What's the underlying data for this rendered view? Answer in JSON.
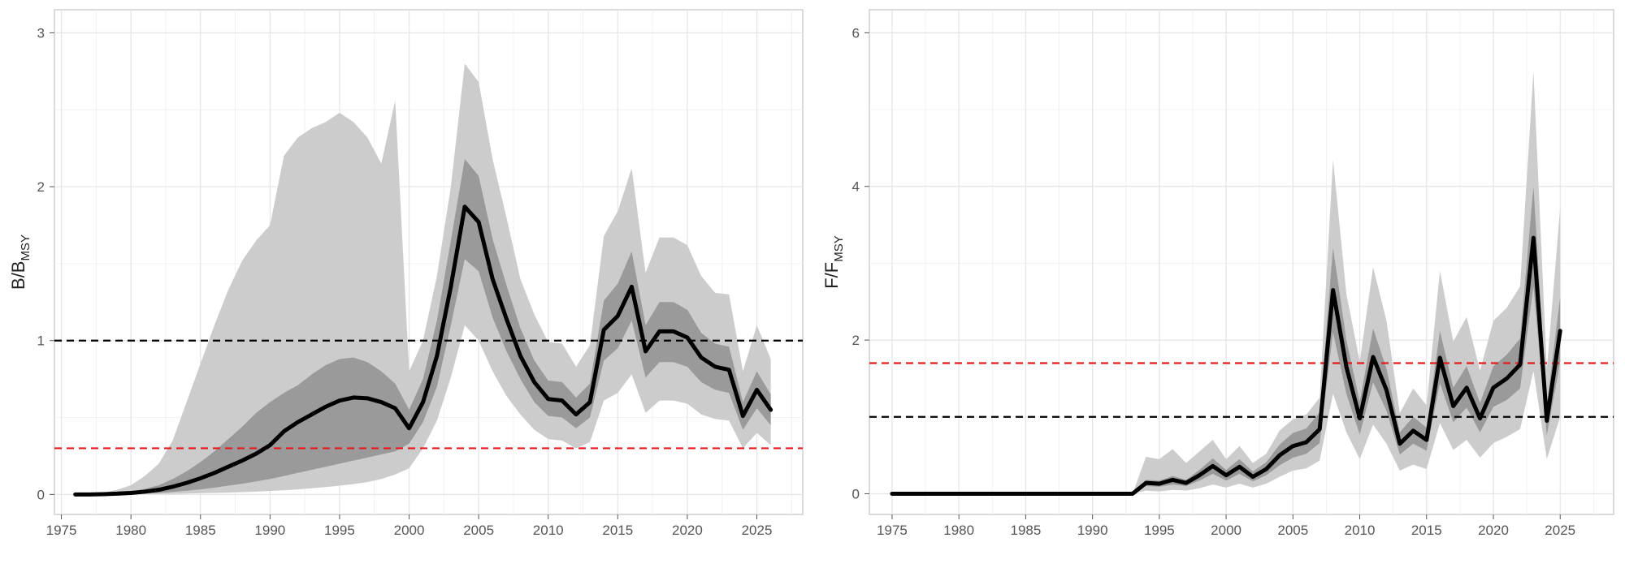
{
  "chart_data": [
    {
      "type": "area",
      "name": "biomass",
      "ylabel_main": "B/B",
      "ylabel_sub": "MSY",
      "xlim": [
        1974.5,
        2028.3
      ],
      "ylim": [
        -0.13,
        3.15
      ],
      "xticks": [
        1975,
        1980,
        1985,
        1990,
        1995,
        2000,
        2005,
        2010,
        2015,
        2020,
        2025
      ],
      "yticks": [
        0,
        1,
        2,
        3
      ],
      "reference_lines": [
        {
          "value": 1.0,
          "color": "#000000"
        },
        {
          "value": 0.3,
          "color": "#e41a1c"
        }
      ],
      "years": [
        1976,
        1977,
        1978,
        1979,
        1980,
        1981,
        1982,
        1983,
        1984,
        1985,
        1986,
        1987,
        1988,
        1989,
        1990,
        1991,
        1992,
        1993,
        1994,
        1995,
        1996,
        1997,
        1998,
        1999,
        2000,
        2001,
        2002,
        2003,
        2004,
        2005,
        2006,
        2007,
        2008,
        2009,
        2010,
        2011,
        2012,
        2013,
        2014,
        2015,
        2016,
        2017,
        2018,
        2019,
        2020,
        2021,
        2022,
        2023,
        2024,
        2025,
        2026
      ],
      "median": [
        0,
        0,
        0.002,
        0.005,
        0.01,
        0.018,
        0.03,
        0.05,
        0.075,
        0.105,
        0.14,
        0.18,
        0.22,
        0.265,
        0.32,
        0.41,
        0.47,
        0.52,
        0.57,
        0.61,
        0.63,
        0.625,
        0.6,
        0.56,
        0.43,
        0.6,
        0.9,
        1.35,
        1.87,
        1.77,
        1.4,
        1.14,
        0.9,
        0.73,
        0.62,
        0.61,
        0.52,
        0.6,
        1.07,
        1.16,
        1.35,
        0.93,
        1.06,
        1.06,
        1.02,
        0.89,
        0.83,
        0.81,
        0.51,
        0.68,
        0.55
      ],
      "inner_low": [
        0,
        0,
        0,
        0.001,
        0.003,
        0.006,
        0.01,
        0.016,
        0.024,
        0.033,
        0.044,
        0.057,
        0.07,
        0.085,
        0.1,
        0.12,
        0.14,
        0.16,
        0.18,
        0.2,
        0.22,
        0.24,
        0.26,
        0.28,
        0.33,
        0.47,
        0.7,
        1.1,
        1.53,
        1.45,
        1.15,
        0.93,
        0.75,
        0.6,
        0.51,
        0.5,
        0.43,
        0.5,
        0.87,
        0.95,
        1.13,
        0.76,
        0.86,
        0.86,
        0.83,
        0.73,
        0.68,
        0.66,
        0.42,
        0.56,
        0.45
      ],
      "inner_high": [
        0,
        0,
        0.004,
        0.01,
        0.02,
        0.036,
        0.06,
        0.1,
        0.15,
        0.21,
        0.28,
        0.36,
        0.44,
        0.53,
        0.6,
        0.66,
        0.71,
        0.78,
        0.84,
        0.88,
        0.89,
        0.86,
        0.8,
        0.72,
        0.55,
        0.75,
        1.13,
        1.65,
        2.18,
        2.07,
        1.66,
        1.36,
        1.08,
        0.87,
        0.74,
        0.73,
        0.63,
        0.72,
        1.26,
        1.37,
        1.58,
        1.1,
        1.25,
        1.25,
        1.2,
        1.05,
        0.98,
        0.96,
        0.6,
        0.8,
        0.65
      ],
      "outer_low": [
        0,
        0,
        0,
        0,
        0.001,
        0.002,
        0.003,
        0.004,
        0.006,
        0.008,
        0.01,
        0.012,
        0.015,
        0.018,
        0.022,
        0.027,
        0.033,
        0.04,
        0.048,
        0.057,
        0.067,
        0.08,
        0.1,
        0.13,
        0.17,
        0.3,
        0.48,
        0.76,
        1.1,
        1.0,
        0.8,
        0.64,
        0.52,
        0.42,
        0.36,
        0.35,
        0.3,
        0.34,
        0.61,
        0.66,
        0.78,
        0.53,
        0.61,
        0.61,
        0.59,
        0.52,
        0.49,
        0.48,
        0.3,
        0.4,
        0.32
      ],
      "outer_high": [
        0,
        0,
        0.01,
        0.03,
        0.06,
        0.12,
        0.2,
        0.35,
        0.6,
        0.85,
        1.1,
        1.33,
        1.52,
        1.65,
        1.75,
        2.2,
        2.32,
        2.38,
        2.42,
        2.48,
        2.42,
        2.32,
        2.15,
        2.56,
        0.8,
        1.0,
        1.42,
        2.0,
        2.8,
        2.68,
        2.18,
        1.8,
        1.4,
        1.17,
        0.99,
        0.98,
        0.83,
        0.97,
        1.68,
        1.84,
        2.12,
        1.44,
        1.67,
        1.67,
        1.62,
        1.42,
        1.31,
        1.3,
        0.8,
        1.1,
        0.88
      ]
    },
    {
      "type": "area",
      "name": "fishing",
      "ylabel_main": "F/F",
      "ylabel_sub": "MSY",
      "xlim": [
        1973.3,
        2029.0
      ],
      "ylim": [
        -0.27,
        6.3
      ],
      "xticks": [
        1975,
        1980,
        1985,
        1990,
        1995,
        2000,
        2005,
        2010,
        2015,
        2020,
        2025
      ],
      "yticks": [
        0,
        2,
        4,
        6
      ],
      "reference_lines": [
        {
          "value": 1.0,
          "color": "#000000"
        },
        {
          "value": 1.7,
          "color": "#e41a1c"
        }
      ],
      "years": [
        1975,
        1976,
        1977,
        1978,
        1979,
        1980,
        1981,
        1982,
        1983,
        1984,
        1985,
        1986,
        1987,
        1988,
        1989,
        1990,
        1991,
        1992,
        1993,
        1994,
        1995,
        1996,
        1997,
        1998,
        1999,
        2000,
        2001,
        2002,
        2003,
        2004,
        2005,
        2006,
        2007,
        2008,
        2009,
        2010,
        2011,
        2012,
        2013,
        2014,
        2015,
        2016,
        2017,
        2018,
        2019,
        2020,
        2021,
        2022,
        2023,
        2024,
        2025
      ],
      "median": [
        0,
        0,
        0,
        0,
        0,
        0,
        0,
        0,
        0,
        0,
        0,
        0,
        0,
        0,
        0,
        0,
        0,
        0,
        0,
        0.14,
        0.13,
        0.18,
        0.14,
        0.24,
        0.36,
        0.24,
        0.35,
        0.22,
        0.32,
        0.5,
        0.62,
        0.67,
        0.84,
        2.65,
        1.65,
        0.98,
        1.78,
        1.35,
        0.65,
        0.82,
        0.7,
        1.77,
        1.14,
        1.38,
        0.98,
        1.38,
        1.5,
        1.68,
        3.33,
        0.95,
        2.12
      ],
      "inner_low": [
        0,
        0,
        0,
        0,
        0,
        0,
        0,
        0,
        0,
        0,
        0,
        0,
        0,
        0,
        0,
        0,
        0,
        0,
        0,
        0.1,
        0.09,
        0.12,
        0.1,
        0.17,
        0.26,
        0.17,
        0.26,
        0.16,
        0.24,
        0.37,
        0.47,
        0.52,
        0.66,
        2.1,
        1.3,
        0.77,
        1.45,
        1.08,
        0.51,
        0.65,
        0.56,
        1.44,
        0.93,
        1.12,
        0.8,
        1.13,
        1.22,
        1.37,
        2.7,
        0.76,
        1.72
      ],
      "inner_high": [
        0,
        0,
        0,
        0,
        0,
        0,
        0,
        0,
        0,
        0,
        0,
        0,
        0,
        0,
        0,
        0,
        0,
        0,
        0,
        0.18,
        0.17,
        0.23,
        0.18,
        0.31,
        0.46,
        0.31,
        0.45,
        0.29,
        0.41,
        0.64,
        0.79,
        0.85,
        1.06,
        3.2,
        2.0,
        1.2,
        2.15,
        1.63,
        0.8,
        1.0,
        0.86,
        2.12,
        1.38,
        1.66,
        1.18,
        1.66,
        1.81,
        2.02,
        4.0,
        1.15,
        2.56
      ],
      "outer_low": [
        0,
        0,
        0,
        0,
        0,
        0,
        0,
        0,
        0,
        0,
        0,
        0,
        0,
        0,
        0,
        0,
        0,
        0,
        0,
        0.04,
        0.03,
        0.05,
        0.04,
        0.07,
        0.12,
        0.08,
        0.13,
        0.08,
        0.13,
        0.22,
        0.3,
        0.33,
        0.43,
        1.3,
        0.8,
        0.45,
        0.9,
        0.65,
        0.3,
        0.38,
        0.32,
        0.92,
        0.57,
        0.7,
        0.47,
        0.66,
        0.74,
        0.84,
        1.6,
        0.45,
        1.0
      ],
      "outer_high": [
        0,
        0,
        0,
        0,
        0,
        0,
        0,
        0,
        0,
        0,
        0,
        0,
        0,
        0,
        0,
        0,
        0,
        0,
        0,
        0.48,
        0.45,
        0.58,
        0.4,
        0.55,
        0.7,
        0.45,
        0.62,
        0.4,
        0.52,
        0.82,
        0.97,
        1.03,
        1.25,
        4.35,
        2.6,
        1.72,
        2.95,
        2.25,
        1.05,
        1.37,
        1.15,
        2.9,
        1.98,
        2.3,
        1.6,
        2.25,
        2.42,
        2.7,
        5.5,
        1.62,
        3.72
      ]
    }
  ]
}
